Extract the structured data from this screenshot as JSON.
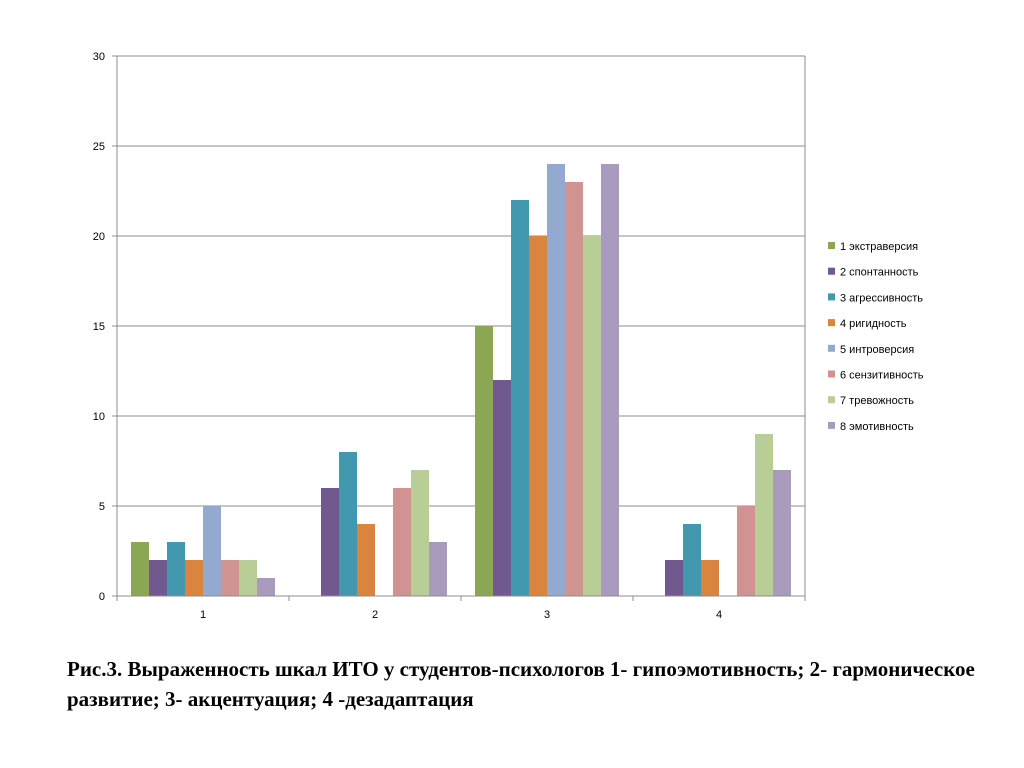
{
  "chart_data": {
    "type": "bar",
    "categories": [
      "1",
      "2",
      "3",
      "4"
    ],
    "ylim": [
      0,
      30
    ],
    "yticks": [
      "0",
      "5",
      "10",
      "15",
      "20",
      "25",
      "30"
    ],
    "grid": true,
    "legend_position": "right",
    "series": [
      {
        "name": "1 экстраверсия",
        "color": "#8ba753",
        "values": [
          3,
          0,
          15,
          0
        ]
      },
      {
        "name": "2 спонтанность",
        "color": "#71588f",
        "values": [
          2,
          6,
          12,
          2
        ]
      },
      {
        "name": "3 агрессивность",
        "color": "#4198af",
        "values": [
          3,
          8,
          22,
          4
        ]
      },
      {
        "name": "4 ригидность",
        "color": "#db843d",
        "values": [
          2,
          4,
          20,
          2
        ]
      },
      {
        "name": "5 интроверсия",
        "color": "#93a9cf",
        "values": [
          5,
          0,
          24,
          0
        ]
      },
      {
        "name": "6 сензитивность",
        "color": "#d19392",
        "values": [
          2,
          6,
          23,
          5
        ]
      },
      {
        "name": "7 тревожность",
        "color": "#b9cd96",
        "values": [
          2,
          7,
          20,
          9
        ]
      },
      {
        "name": "8 эмотивность",
        "color": "#a99bbd",
        "values": [
          1,
          3,
          24,
          7
        ]
      }
    ]
  },
  "caption": "Рис.3. Выраженность шкал ИТО у студентов-психологов 1- гипоэмотивность; 2- гармоническое развитие; 3- акцентуация; 4 -дезадаптация"
}
